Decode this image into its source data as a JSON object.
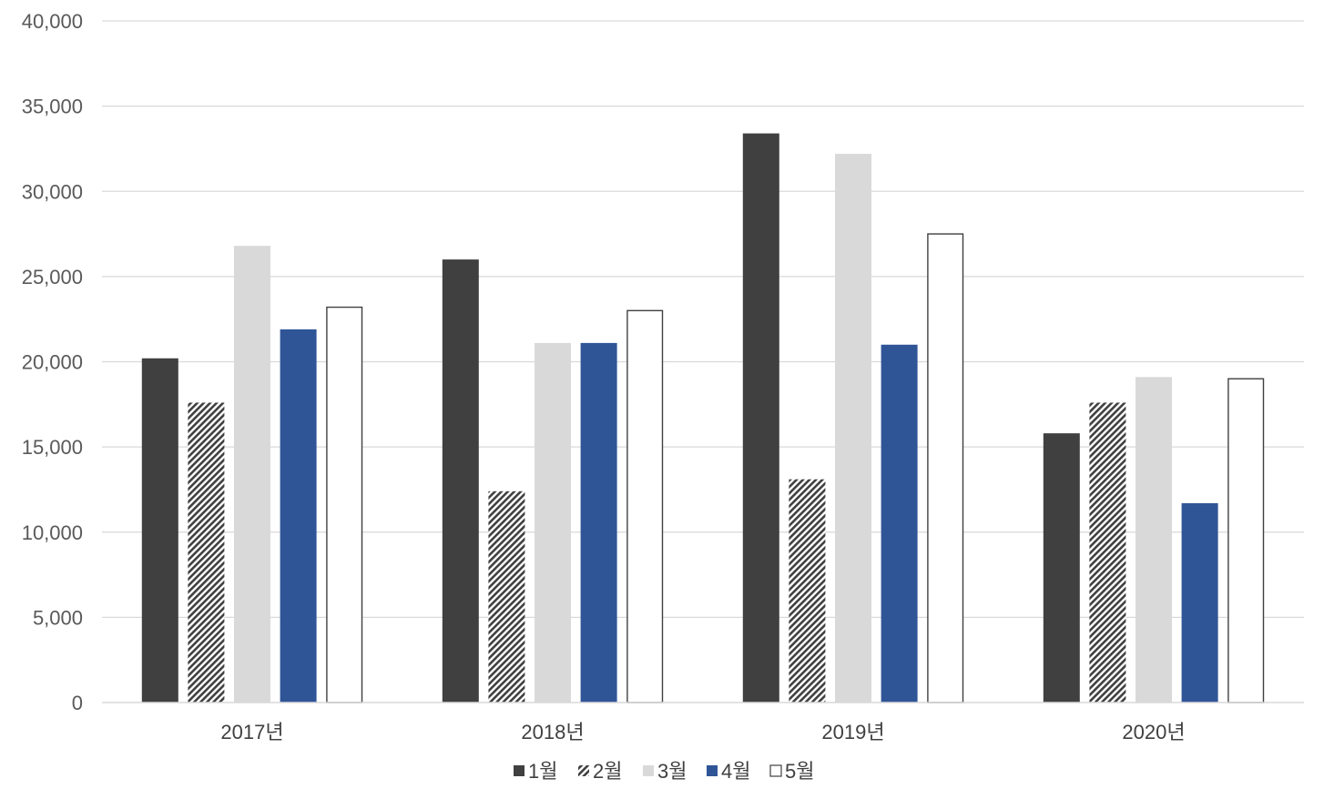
{
  "chart_data": {
    "type": "bar",
    "title": "",
    "xlabel": "",
    "ylabel": "",
    "ylim": [
      0,
      40000
    ],
    "yticks": [
      0,
      5000,
      10000,
      15000,
      20000,
      25000,
      30000,
      35000,
      40000
    ],
    "ytick_labels": [
      "0",
      "5,000",
      "10,000",
      "15,000",
      "20,000",
      "25,000",
      "30,000",
      "35,000",
      "40,000"
    ],
    "grid": true,
    "legend_position": "bottom",
    "categories": [
      "2017년",
      "2018년",
      "2019년",
      "2020년"
    ],
    "series": [
      {
        "name": "1월",
        "values": [
          20200,
          26000,
          33400,
          15800
        ],
        "color": "#404040",
        "pattern": "solid"
      },
      {
        "name": "2월",
        "values": [
          17600,
          12400,
          13100,
          17600
        ],
        "color": "#404040",
        "pattern": "hatch"
      },
      {
        "name": "3월",
        "values": [
          26800,
          21100,
          32200,
          19100
        ],
        "color": "#d9d9d9",
        "pattern": "solid"
      },
      {
        "name": "4월",
        "values": [
          21900,
          21100,
          21000,
          11700
        ],
        "color": "#2f5597",
        "pattern": "solid"
      },
      {
        "name": "5월",
        "values": [
          23200,
          23000,
          27500,
          19000
        ],
        "color": "#ffffff",
        "pattern": "outline"
      }
    ]
  }
}
